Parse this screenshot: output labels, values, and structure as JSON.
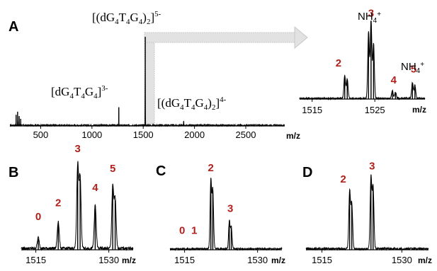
{
  "chart_data": [
    {
      "id": "A",
      "type": "line",
      "panel_label": "A",
      "xlabel": "m/z",
      "xlim": [
        200,
        2880
      ],
      "ticks": [
        500,
        1000,
        1500,
        2000,
        2500
      ],
      "peaks": [
        {
          "x": 260,
          "h": 0.12
        },
        {
          "x": 275,
          "h": 0.16
        },
        {
          "x": 290,
          "h": 0.11
        },
        {
          "x": 305,
          "h": 0.08
        },
        {
          "x": 1262,
          "h": 0.21
        },
        {
          "x": 1520,
          "h": 1.0
        },
        {
          "x": 1895,
          "h": 0.05
        }
      ],
      "annotations": [
        {
          "base": "[(dG",
          "sub": [
            "4",
            "4",
            "4"
          ],
          "text_parts": [
            "[(dG",
            "T",
            "G",
            ")"
          ],
          "charge": "5-",
          "target_x": 1520
        },
        {
          "charge": "3-",
          "target_x": 1262
        },
        {
          "charge": "4-",
          "target_x": 1895
        }
      ]
    },
    {
      "id": "A-inset",
      "type": "line",
      "xlabel": "m/z",
      "xlim": [
        1513,
        1533
      ],
      "ticks": [
        1515,
        1525
      ],
      "peaks": [
        {
          "x": 1520.2,
          "h": 0.3
        },
        {
          "x": 1520.6,
          "h": 0.25
        },
        {
          "x": 1524.0,
          "h": 0.85
        },
        {
          "x": 1524.4,
          "h": 1.0
        },
        {
          "x": 1524.8,
          "h": 0.7
        },
        {
          "x": 1527.8,
          "h": 0.1
        },
        {
          "x": 1528.3,
          "h": 0.08
        },
        {
          "x": 1531.0,
          "h": 0.2
        },
        {
          "x": 1531.4,
          "h": 0.17
        }
      ],
      "labels": [
        {
          "x": 1519.2,
          "h": 0.42,
          "text": "2"
        },
        {
          "x": 1524.4,
          "h": 1.06,
          "text": "3"
        },
        {
          "x": 1528.0,
          "h": 0.2,
          "text": "4"
        },
        {
          "x": 1531.2,
          "h": 0.34,
          "text": "5"
        }
      ],
      "ammonium_labels": [
        {
          "label_ref": "3",
          "text": "NH",
          "sub": "4",
          "sup": "+"
        },
        {
          "label_ref": "5",
          "text": "NH",
          "sub": "4",
          "sup": "+"
        }
      ]
    },
    {
      "id": "B",
      "type": "line",
      "panel_label": "B",
      "xlabel": "m/z",
      "xlim": [
        1512,
        1535
      ],
      "ticks": [
        1515,
        1530
      ],
      "peaks": [
        {
          "x": 1515.5,
          "h": 0.12
        },
        {
          "x": 1519.6,
          "h": 0.3
        },
        {
          "x": 1523.6,
          "h": 0.92
        },
        {
          "x": 1524.1,
          "h": 0.78
        },
        {
          "x": 1527.2,
          "h": 0.48
        },
        {
          "x": 1530.8,
          "h": 0.68
        },
        {
          "x": 1531.3,
          "h": 0.55
        }
      ],
      "labels": [
        {
          "x": 1515.5,
          "h": 0.33,
          "text": "0"
        },
        {
          "x": 1519.6,
          "h": 0.48,
          "text": "2"
        },
        {
          "x": 1523.6,
          "h": 1.08,
          "text": "3"
        },
        {
          "x": 1527.2,
          "h": 0.65,
          "text": "4"
        },
        {
          "x": 1530.8,
          "h": 0.86,
          "text": "5"
        }
      ]
    },
    {
      "id": "C",
      "type": "line",
      "panel_label": "C",
      "xlabel": "m/z",
      "xlim": [
        1512,
        1535
      ],
      "ticks": [
        1515,
        1530
      ],
      "peaks": [
        {
          "x": 1520.4,
          "h": 0.95
        },
        {
          "x": 1520.8,
          "h": 0.8
        },
        {
          "x": 1524.2,
          "h": 0.38
        },
        {
          "x": 1524.6,
          "h": 0.3
        }
      ],
      "labels": [
        {
          "x": 1514.5,
          "h": 0.22,
          "text": "0"
        },
        {
          "x": 1517.0,
          "h": 0.22,
          "text": "1"
        },
        {
          "x": 1520.4,
          "h": 1.08,
          "text": "2"
        },
        {
          "x": 1524.4,
          "h": 0.52,
          "text": "3"
        }
      ]
    },
    {
      "id": "D",
      "type": "line",
      "panel_label": "D",
      "xlabel": "m/z",
      "xlim": [
        1512,
        1535
      ],
      "ticks": [
        1515,
        1530
      ],
      "peaks": [
        {
          "x": 1520.2,
          "h": 0.78
        },
        {
          "x": 1520.6,
          "h": 0.62
        },
        {
          "x": 1524.2,
          "h": 0.98
        },
        {
          "x": 1524.6,
          "h": 0.85
        }
      ],
      "labels": [
        {
          "x": 1519.0,
          "h": 0.92,
          "text": "2"
        },
        {
          "x": 1524.4,
          "h": 1.1,
          "text": "3"
        }
      ]
    }
  ],
  "annotation_text": {
    "dimer5": {
      "pre": "[(dG",
      "s1": "4",
      "m1": "T",
      "s2": "4",
      "m2": "G",
      "s3": "4",
      "post": ")",
      "s4": "2",
      "end": "]",
      "charge": "5-"
    },
    "monomer3": {
      "pre": "[dG",
      "s1": "4",
      "m1": "T",
      "s2": "4",
      "m2": "G",
      "s3": "4",
      "end": "]",
      "charge": "3-"
    },
    "dimer4": {
      "pre": "[(dG",
      "s1": "4",
      "m1": "T",
      "s2": "4",
      "m2": "G",
      "s3": "4",
      "post": ")",
      "s4": "2",
      "end": "]",
      "charge": "4-"
    },
    "nh4_main": {
      "text": "NH",
      "sub": "4",
      "sup": "+"
    },
    "nh4_five": {
      "text": "NH",
      "sub": "4",
      "sup": "+"
    }
  },
  "colors": {
    "trace": "#000000",
    "peak_label": "#b0201c",
    "arrow": "#cfcfcf"
  }
}
